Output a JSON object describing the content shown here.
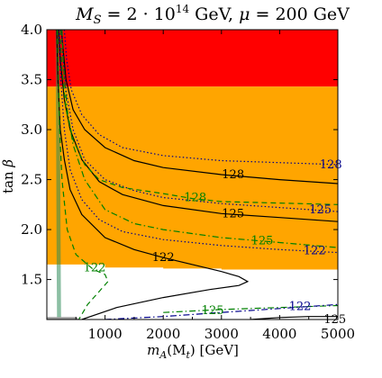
{
  "chart_data": {
    "type": "area",
    "title": "M_S = 2·10^14 GeV, μ = 200 GeV",
    "title_parts": {
      "a": "M",
      "b": "S",
      "c": " = 2 · 10",
      "d": "14",
      "e": " GeV, ",
      "f": "μ",
      "g": " = 200 GeV"
    },
    "xlabel_parts": {
      "a": "m",
      "b": "A",
      "c": "(M",
      "d": "t",
      "e": ") [GeV]"
    },
    "ylabel_parts": {
      "a": "tan ",
      "b": "β"
    },
    "xlim": [
      0,
      5000
    ],
    "ylim": [
      1.1,
      4.0
    ],
    "x_ticks": [
      1000,
      2000,
      3000,
      4000,
      5000
    ],
    "x_tick_labels": [
      "1000",
      "2000",
      "3000",
      "4000",
      "5000"
    ],
    "y_ticks": [
      1.5,
      2.0,
      2.5,
      3.0,
      3.5,
      4.0
    ],
    "y_tick_labels": [
      "1.5",
      "2.0",
      "2.5",
      "3.0",
      "3.5",
      "4.0"
    ],
    "regions": [
      {
        "name": "red",
        "color": "#ff0000",
        "polygon": [
          [
            0,
            3.43
          ],
          [
            5000,
            3.43
          ],
          [
            5000,
            4.0
          ],
          [
            0,
            4.0
          ]
        ]
      },
      {
        "name": "orange",
        "color": "#ffa500",
        "polygon": [
          [
            0,
            1.65
          ],
          [
            1000,
            1.65
          ],
          [
            1000,
            1.62
          ],
          [
            2000,
            1.62
          ],
          [
            2000,
            1.61
          ],
          [
            3000,
            1.61
          ],
          [
            3000,
            1.6
          ],
          [
            5000,
            1.6
          ],
          [
            5000,
            3.43
          ],
          [
            0,
            3.43
          ]
        ]
      }
    ],
    "left_band_color": "#2e8b57",
    "series": [
      {
        "label": "128",
        "style": "solid",
        "color": "#000000",
        "points": [
          [
            250,
            4.0
          ],
          [
            280,
            3.8
          ],
          [
            330,
            3.5
          ],
          [
            450,
            3.2
          ],
          [
            650,
            3.0
          ],
          [
            1000,
            2.82
          ],
          [
            1500,
            2.69
          ],
          [
            2000,
            2.62
          ],
          [
            3000,
            2.55
          ],
          [
            4000,
            2.5
          ],
          [
            5000,
            2.46
          ]
        ]
      },
      {
        "label": "125",
        "style": "solid",
        "color": "#000000",
        "points": [
          [
            200,
            4.0
          ],
          [
            230,
            3.7
          ],
          [
            300,
            3.3
          ],
          [
            400,
            3.0
          ],
          [
            600,
            2.7
          ],
          [
            900,
            2.48
          ],
          [
            1300,
            2.35
          ],
          [
            2000,
            2.24
          ],
          [
            3000,
            2.16
          ],
          [
            4000,
            2.12
          ],
          [
            5000,
            2.08
          ]
        ]
      },
      {
        "label": "122",
        "style": "solid",
        "color": "#000000",
        "points": [
          [
            170,
            4.0
          ],
          [
            190,
            3.5
          ],
          [
            230,
            3.0
          ],
          [
            300,
            2.7
          ],
          [
            400,
            2.4
          ],
          [
            600,
            2.15
          ],
          [
            1000,
            1.92
          ],
          [
            1500,
            1.8
          ],
          [
            2000,
            1.72
          ],
          [
            2500,
            1.65
          ],
          [
            3000,
            1.58
          ],
          [
            3300,
            1.53
          ],
          [
            3450,
            1.48
          ],
          [
            3300,
            1.44
          ],
          [
            2800,
            1.4
          ],
          [
            2000,
            1.32
          ],
          [
            1200,
            1.22
          ],
          [
            600,
            1.1
          ]
        ]
      },
      {
        "label": "125",
        "style": "solid",
        "color": "#000000",
        "points": [
          [
            3500,
            1.1
          ],
          [
            4000,
            1.12
          ],
          [
            4500,
            1.13
          ],
          [
            5000,
            1.13
          ]
        ]
      },
      {
        "label": "128",
        "style": "dotted",
        "color": "#00008b",
        "points": [
          [
            300,
            4.0
          ],
          [
            340,
            3.7
          ],
          [
            420,
            3.4
          ],
          [
            600,
            3.15
          ],
          [
            900,
            2.95
          ],
          [
            1300,
            2.82
          ],
          [
            2000,
            2.74
          ],
          [
            3000,
            2.69
          ],
          [
            4000,
            2.67
          ],
          [
            5000,
            2.65
          ]
        ]
      },
      {
        "label": "125",
        "style": "dotted",
        "color": "#00008b",
        "points": [
          [
            250,
            4.0
          ],
          [
            280,
            3.7
          ],
          [
            340,
            3.35
          ],
          [
            450,
            3.0
          ],
          [
            650,
            2.7
          ],
          [
            1000,
            2.5
          ],
          [
            1500,
            2.39
          ],
          [
            2000,
            2.32
          ],
          [
            3000,
            2.26
          ],
          [
            4000,
            2.22
          ],
          [
            5000,
            2.18
          ]
        ]
      },
      {
        "label": "122",
        "style": "dotted",
        "color": "#00008b",
        "points": [
          [
            210,
            4.0
          ],
          [
            240,
            3.5
          ],
          [
            300,
            3.0
          ],
          [
            400,
            2.6
          ],
          [
            600,
            2.3
          ],
          [
            900,
            2.1
          ],
          [
            1300,
            1.98
          ],
          [
            2000,
            1.9
          ],
          [
            3000,
            1.84
          ],
          [
            4000,
            1.8
          ],
          [
            5000,
            1.77
          ]
        ]
      },
      {
        "label": "128",
        "style": "dashed",
        "color": "#008000",
        "points": [
          [
            230,
            4.0
          ],
          [
            260,
            3.6
          ],
          [
            330,
            3.2
          ],
          [
            450,
            2.9
          ],
          [
            650,
            2.65
          ],
          [
            900,
            2.5
          ],
          [
            1300,
            2.42
          ],
          [
            2000,
            2.36
          ],
          [
            2500,
            2.31
          ],
          [
            3000,
            2.28
          ],
          [
            5000,
            2.25
          ]
        ]
      },
      {
        "label": "125",
        "style": "dashdot",
        "color": "#008000",
        "points": [
          [
            260,
            4.0
          ],
          [
            290,
            3.6
          ],
          [
            350,
            3.2
          ],
          [
            450,
            2.85
          ],
          [
            650,
            2.5
          ],
          [
            1000,
            2.2
          ],
          [
            1500,
            2.06
          ],
          [
            2000,
            2.0
          ],
          [
            3000,
            1.92
          ],
          [
            4000,
            1.87
          ],
          [
            5000,
            1.82
          ]
        ]
      },
      {
        "label": "122",
        "style": "dashed",
        "color": "#008000",
        "points": [
          [
            180,
            4.0
          ],
          [
            200,
            3.5
          ],
          [
            220,
            3.0
          ],
          [
            260,
            2.5
          ],
          [
            350,
            2.0
          ],
          [
            500,
            1.75
          ],
          [
            800,
            1.6
          ],
          [
            1000,
            1.55
          ],
          [
            1050,
            1.48
          ],
          [
            900,
            1.38
          ],
          [
            700,
            1.25
          ],
          [
            550,
            1.1
          ]
        ]
      },
      {
        "label": "125",
        "style": "dashdot",
        "color": "#008000",
        "points": [
          [
            2000,
            1.17
          ],
          [
            3000,
            1.2
          ],
          [
            4000,
            1.22
          ],
          [
            5000,
            1.24
          ]
        ]
      },
      {
        "label": "122",
        "style": "dashdot",
        "color": "#00008b",
        "points": [
          [
            1000,
            1.1
          ],
          [
            2000,
            1.13
          ],
          [
            3000,
            1.17
          ],
          [
            4000,
            1.21
          ],
          [
            5000,
            1.25
          ]
        ]
      }
    ],
    "contour_labels": [
      {
        "text": "128",
        "x": 3200,
        "y": 2.55,
        "color": "#000000"
      },
      {
        "text": "125",
        "x": 3200,
        "y": 2.16,
        "color": "#000000"
      },
      {
        "text": "122",
        "x": 2000,
        "y": 1.72,
        "color": "#000000"
      },
      {
        "text": "125",
        "x": 4950,
        "y": 1.1,
        "color": "#000000"
      },
      {
        "text": "128",
        "x": 4880,
        "y": 2.65,
        "color": "#00008b"
      },
      {
        "text": "125",
        "x": 4700,
        "y": 2.2,
        "color": "#00008b"
      },
      {
        "text": "122",
        "x": 4600,
        "y": 1.79,
        "color": "#00008b"
      },
      {
        "text": "128",
        "x": 2550,
        "y": 2.32,
        "color": "#008000"
      },
      {
        "text": "125",
        "x": 3700,
        "y": 1.89,
        "color": "#008000"
      },
      {
        "text": "122",
        "x": 820,
        "y": 1.62,
        "color": "#008000"
      },
      {
        "text": "125",
        "x": 2850,
        "y": 1.19,
        "color": "#008000"
      },
      {
        "text": "122",
        "x": 4350,
        "y": 1.23,
        "color": "#00008b"
      }
    ]
  }
}
